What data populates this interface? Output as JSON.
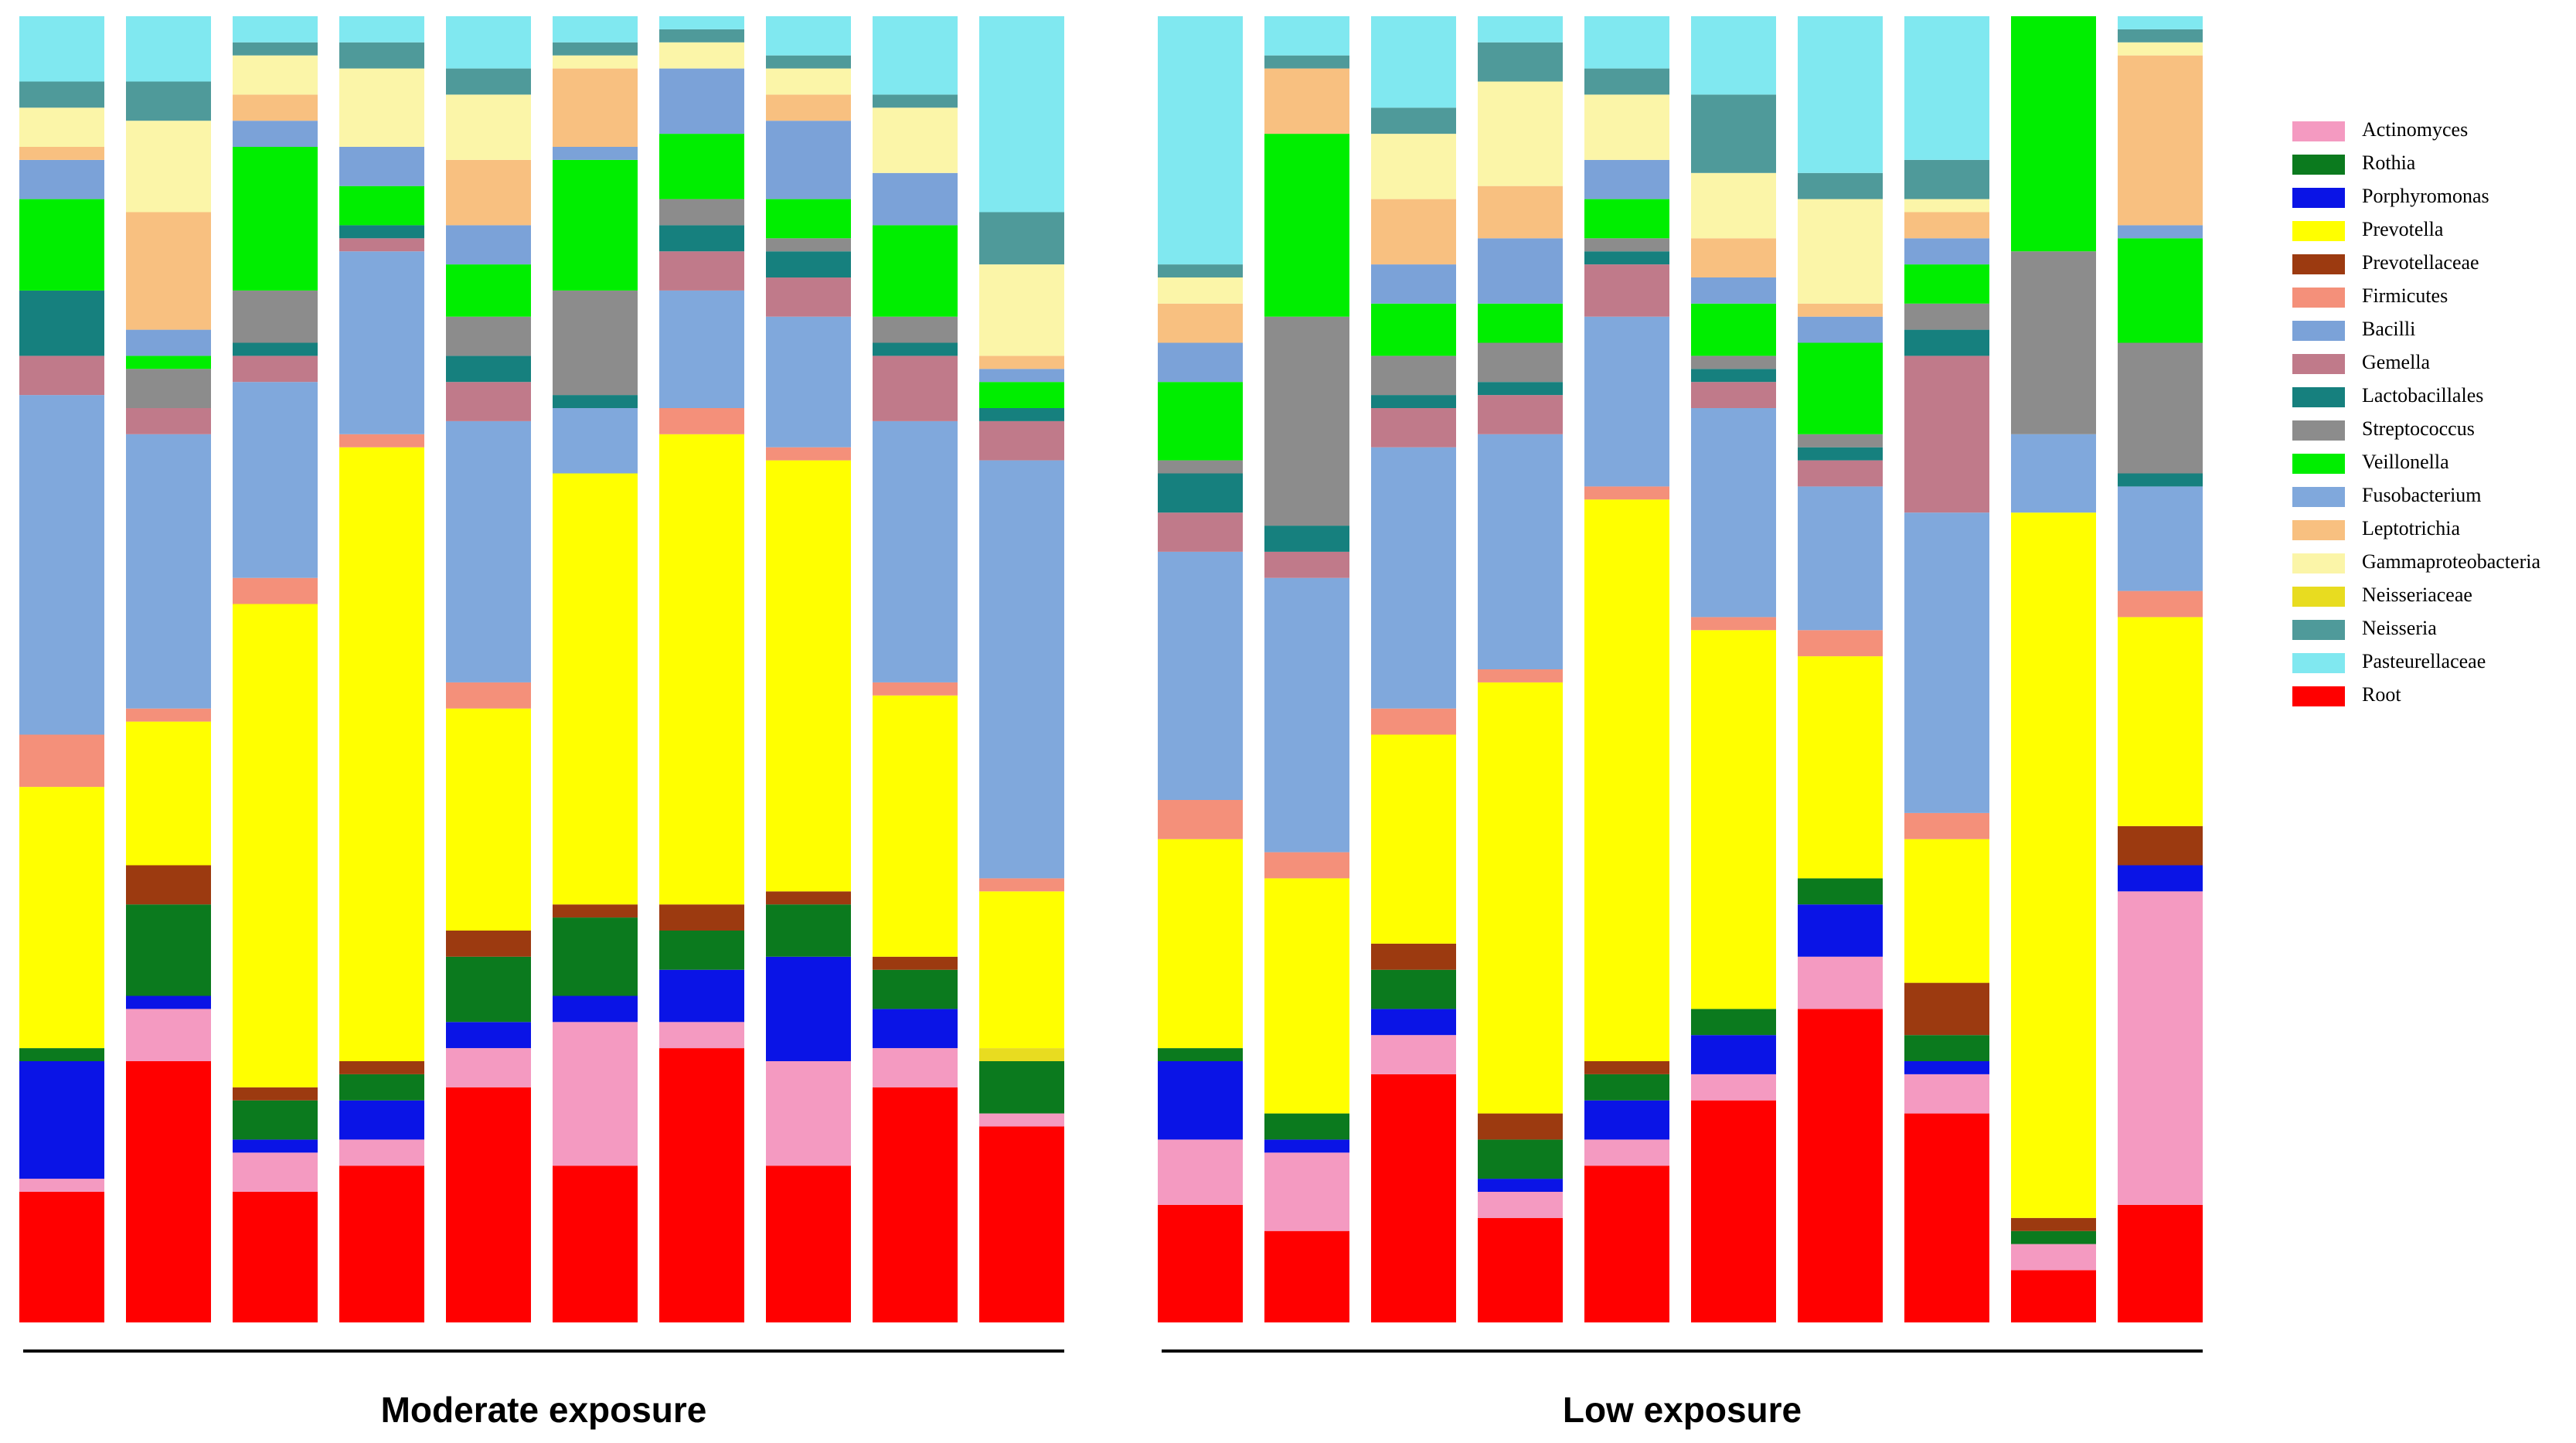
{
  "chart_data": {
    "type": "stacked-bar",
    "categories": [
      null,
      null,
      null,
      null,
      null,
      null,
      null,
      null,
      null,
      null,
      null,
      null,
      null,
      null,
      null,
      null,
      null,
      null,
      null,
      null
    ],
    "x_groups": [
      "Moderate exposure",
      "Low exposure"
    ],
    "ylim": [
      0,
      100
    ],
    "legend": "right",
    "series": [
      {
        "name": "Actinomyces",
        "color": "#f49ac1",
        "values": [
          1,
          4,
          3,
          2,
          3,
          11,
          2,
          8,
          3,
          1,
          5,
          6,
          3,
          2,
          2,
          2,
          4,
          3,
          2,
          24
        ]
      },
      {
        "name": "Rothia",
        "color": "#0b7a1e",
        "values": [
          1,
          7,
          3,
          2,
          5,
          6,
          3,
          4,
          3,
          4,
          1,
          2,
          3,
          3,
          2,
          2,
          2,
          2,
          1,
          0
        ]
      },
      {
        "name": "Porphyromonas",
        "color": "#0a14e6",
        "values": [
          9,
          1,
          1,
          3,
          2,
          2,
          4,
          8,
          3,
          0,
          6,
          1,
          2,
          1,
          3,
          3,
          4,
          1,
          0,
          2
        ]
      },
      {
        "name": "Prevotella",
        "color": "#ffff00",
        "values": [
          20,
          11,
          37,
          47,
          17,
          33,
          36,
          33,
          20,
          12,
          16,
          18,
          16,
          33,
          43,
          29,
          17,
          11,
          54,
          16
        ]
      },
      {
        "name": "Prevotellaceae",
        "color": "#9c3a10",
        "values": [
          0,
          3,
          1,
          1,
          2,
          1,
          2,
          1,
          1,
          0,
          0,
          0,
          2,
          2,
          1,
          0,
          0,
          4,
          1,
          3
        ]
      },
      {
        "name": "Firmicutes",
        "color": "#f4907a",
        "values": [
          4,
          1,
          2,
          1,
          2,
          0,
          2,
          1,
          1,
          1,
          3,
          2,
          2,
          1,
          1,
          1,
          2,
          2,
          0,
          2
        ]
      },
      {
        "name": "Bacilli",
        "color": "#7ba2d8",
        "values": [
          3,
          2,
          2,
          3,
          3,
          1,
          5,
          6,
          4,
          1,
          3,
          0,
          3,
          5,
          3,
          2,
          2,
          2,
          0,
          1
        ]
      },
      {
        "name": "Gemella",
        "color": "#c07a8a",
        "values": [
          3,
          2,
          2,
          1,
          3,
          0,
          3,
          3,
          5,
          3,
          3,
          2,
          3,
          3,
          4,
          2,
          2,
          12,
          0,
          0
        ]
      },
      {
        "name": "Lactobacillales",
        "color": "#16807e",
        "values": [
          5,
          0,
          1,
          1,
          2,
          1,
          2,
          2,
          1,
          1,
          3,
          2,
          1,
          1,
          1,
          1,
          1,
          2,
          0,
          1
        ]
      },
      {
        "name": "Streptococcus",
        "color": "#8c8c8c",
        "values": [
          0,
          3,
          4,
          0,
          3,
          8,
          2,
          1,
          2,
          0,
          1,
          16,
          3,
          3,
          1,
          1,
          1,
          2,
          14,
          10
        ]
      },
      {
        "name": "Veillonella",
        "color": "#00ee00",
        "values": [
          7,
          1,
          11,
          3,
          4,
          10,
          5,
          3,
          7,
          2,
          6,
          14,
          4,
          3,
          3,
          4,
          7,
          3,
          18,
          8
        ]
      },
      {
        "name": "Fusobacterium",
        "color": "#80a8dc",
        "values": [
          26,
          21,
          15,
          14,
          20,
          5,
          9,
          10,
          20,
          32,
          19,
          21,
          20,
          18,
          13,
          16,
          11,
          23,
          6,
          8
        ]
      },
      {
        "name": "Leptotrichia",
        "color": "#f8c080",
        "values": [
          1,
          9,
          2,
          0,
          5,
          6,
          0,
          2,
          0,
          1,
          3,
          5,
          5,
          4,
          0,
          3,
          1,
          2,
          0,
          13
        ]
      },
      {
        "name": "Gammaproteobacteria",
        "color": "#fbf5a8",
        "values": [
          3,
          7,
          3,
          6,
          5,
          1,
          2,
          2,
          5,
          7,
          2,
          0,
          5,
          8,
          5,
          5,
          8,
          1,
          0,
          1
        ]
      },
      {
        "name": "Neisseriaceae",
        "color": "#e8dc20",
        "values": [
          0,
          0,
          0,
          0,
          0,
          0,
          0,
          0,
          0,
          1,
          0,
          0,
          0,
          0,
          0,
          0,
          0,
          0,
          0,
          0
        ]
      },
      {
        "name": "Neisseria",
        "color": "#4f9a9a",
        "values": [
          2,
          3,
          1,
          2,
          2,
          1,
          1,
          1,
          1,
          4,
          1,
          1,
          2,
          3,
          2,
          6,
          2,
          3,
          0,
          1
        ]
      },
      {
        "name": "Pasteurellaceae",
        "color": "#80e8f0",
        "values": [
          5,
          5,
          2,
          2,
          4,
          2,
          1,
          3,
          6,
          15,
          19,
          3,
          7,
          2,
          4,
          6,
          12,
          11,
          0,
          1
        ]
      },
      {
        "name": "Root",
        "color": "#ff0000",
        "values": [
          10,
          20,
          10,
          12,
          18,
          12,
          21,
          12,
          18,
          15,
          9,
          7,
          19,
          8,
          12,
          17,
          24,
          16,
          4,
          9
        ]
      }
    ]
  }
}
